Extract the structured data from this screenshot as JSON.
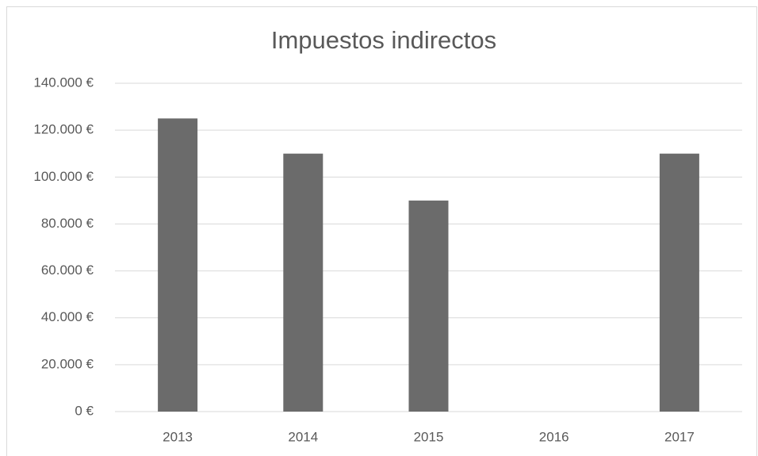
{
  "chart_data": {
    "type": "bar",
    "title": "Impuestos indirectos",
    "categories": [
      "2013",
      "2014",
      "2015",
      "2016",
      "2017"
    ],
    "values": [
      125000,
      110000,
      90000,
      0,
      110000
    ],
    "color": "#6b6b6b",
    "ylim": [
      0,
      140000
    ],
    "yticks": [
      {
        "value": 0,
        "label": "0 €"
      },
      {
        "value": 20000,
        "label": "20.000 €"
      },
      {
        "value": 40000,
        "label": "40.000 €"
      },
      {
        "value": 60000,
        "label": "60.000 €"
      },
      {
        "value": 80000,
        "label": "80.000 €"
      },
      {
        "value": 100000,
        "label": "100.000 €"
      },
      {
        "value": 120000,
        "label": "120.000 €"
      },
      {
        "value": 140000,
        "label": "140.000 €"
      }
    ],
    "grid": true
  }
}
